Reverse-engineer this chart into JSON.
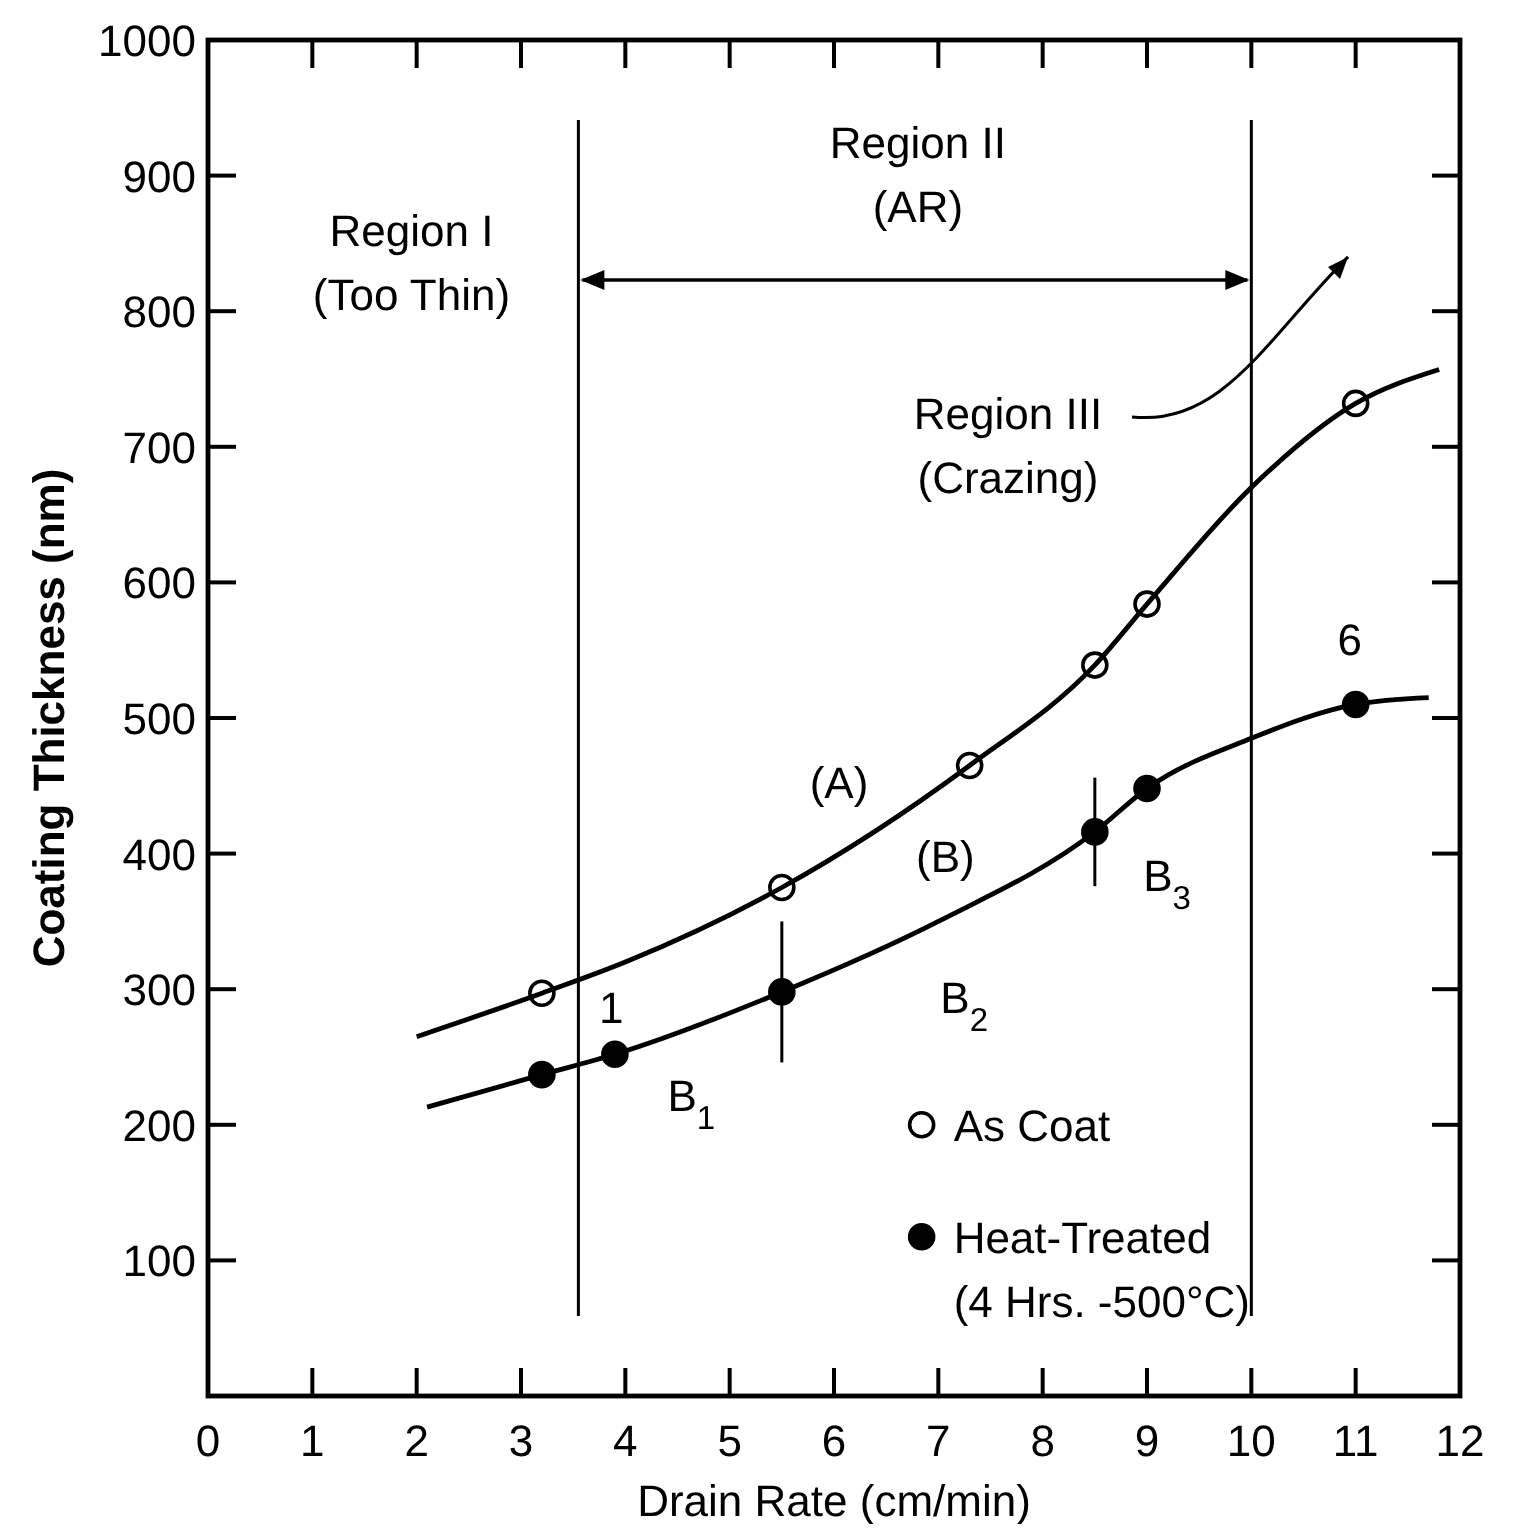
{
  "chart_data": {
    "type": "scatter",
    "xlabel": "Drain Rate (cm/min)",
    "ylabel": "Coating Thickness (nm)",
    "xlim": [
      0,
      12
    ],
    "ylim": [
      0,
      1000
    ],
    "xticks": [
      0,
      1,
      2,
      3,
      4,
      5,
      6,
      7,
      8,
      9,
      10,
      11,
      12
    ],
    "yticks": [
      {
        "value": 0,
        "label": null
      },
      100,
      200,
      300,
      400,
      500,
      600,
      700,
      800,
      900,
      1000
    ],
    "legend": "bottom right",
    "grid": false,
    "series": [
      {
        "name": "As Coat",
        "color": "#000000",
        "marker": "circle",
        "x": [
          3.2,
          5.5,
          7.3,
          8.5,
          9.0,
          11.0
        ],
        "values": [
          297,
          375,
          465,
          539,
          584,
          732
        ]
      },
      {
        "name": "Heat-Treated\n(4 Hrs. -500°C)",
        "color": "#000000",
        "marker": "circle",
        "x": [
          3.2,
          3.9,
          5.5,
          8.5,
          9.0,
          11.0
        ],
        "values": [
          237,
          252,
          298,
          416,
          448,
          510
        ],
        "errors": [
          null,
          null,
          52,
          40,
          null,
          null
        ]
      },
      {
        "type": "line",
        "color": "#000000",
        "x": [
          2,
          3.2,
          4,
          5.5,
          7.3,
          8.5,
          9,
          10,
          11,
          11.8
        ],
        "values": [
          265,
          297,
          320,
          375,
          465,
          539,
          584,
          670,
          732,
          757
        ]
      },
      {
        "type": "line",
        "color": "#000000",
        "x": [
          2.1,
          3.2,
          3.9,
          5.5,
          7,
          8.5,
          9,
          10,
          11,
          11.7
        ],
        "values": [
          213,
          237,
          252,
          298,
          350,
          416,
          448,
          485,
          510,
          515
        ]
      }
    ],
    "ref_lines": [
      {
        "axis": "x",
        "value": 3.55,
        "color": "#000000"
      },
      {
        "axis": "x",
        "value": 10,
        "color": "#000000"
      }
    ],
    "annotations": [
      "Region I\n(Too Thin)",
      "Region II\n(AR)",
      "Region III\n(Crazing)",
      "(A)",
      "(B)",
      "B$_{1}$",
      "B$_{2}$",
      "B$_{3}$",
      "1",
      "6"
    ]
  }
}
